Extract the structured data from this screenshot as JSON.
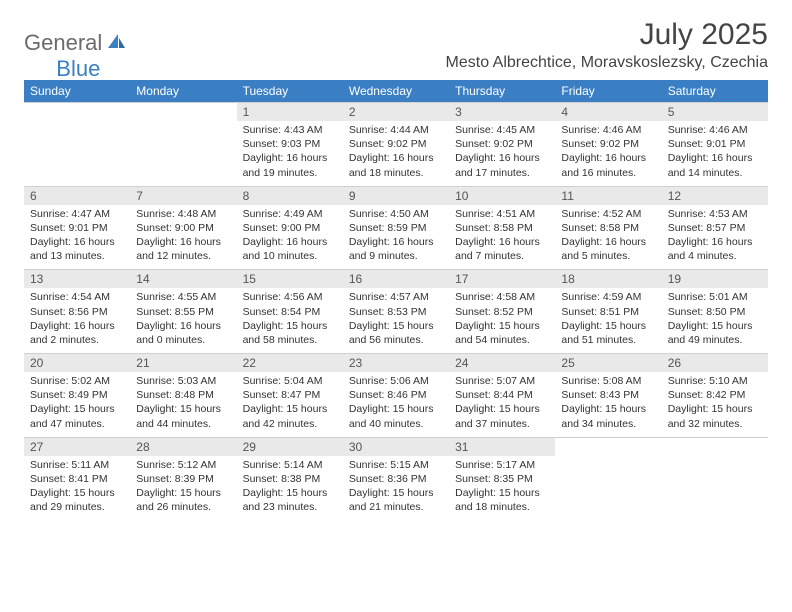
{
  "logo": {
    "word1": "General",
    "word2": "Blue"
  },
  "title": "July 2025",
  "location": "Mesto Albrechtice, Moravskoslezsky, Czechia",
  "colors": {
    "accent": "#3a7fc4",
    "header_bg": "#3a7fc4",
    "header_text": "#ffffff",
    "daynum_bg": "#e9e9e9",
    "border": "#d0d0d0",
    "logo_gray": "#6b6b6b"
  },
  "weekdays": [
    "Sunday",
    "Monday",
    "Tuesday",
    "Wednesday",
    "Thursday",
    "Friday",
    "Saturday"
  ],
  "weeks": [
    {
      "days": [
        null,
        null,
        {
          "num": "1",
          "sunrise": "Sunrise: 4:43 AM",
          "sunset": "Sunset: 9:03 PM",
          "dayl1": "Daylight: 16 hours",
          "dayl2": "and 19 minutes."
        },
        {
          "num": "2",
          "sunrise": "Sunrise: 4:44 AM",
          "sunset": "Sunset: 9:02 PM",
          "dayl1": "Daylight: 16 hours",
          "dayl2": "and 18 minutes."
        },
        {
          "num": "3",
          "sunrise": "Sunrise: 4:45 AM",
          "sunset": "Sunset: 9:02 PM",
          "dayl1": "Daylight: 16 hours",
          "dayl2": "and 17 minutes."
        },
        {
          "num": "4",
          "sunrise": "Sunrise: 4:46 AM",
          "sunset": "Sunset: 9:02 PM",
          "dayl1": "Daylight: 16 hours",
          "dayl2": "and 16 minutes."
        },
        {
          "num": "5",
          "sunrise": "Sunrise: 4:46 AM",
          "sunset": "Sunset: 9:01 PM",
          "dayl1": "Daylight: 16 hours",
          "dayl2": "and 14 minutes."
        }
      ]
    },
    {
      "days": [
        {
          "num": "6",
          "sunrise": "Sunrise: 4:47 AM",
          "sunset": "Sunset: 9:01 PM",
          "dayl1": "Daylight: 16 hours",
          "dayl2": "and 13 minutes."
        },
        {
          "num": "7",
          "sunrise": "Sunrise: 4:48 AM",
          "sunset": "Sunset: 9:00 PM",
          "dayl1": "Daylight: 16 hours",
          "dayl2": "and 12 minutes."
        },
        {
          "num": "8",
          "sunrise": "Sunrise: 4:49 AM",
          "sunset": "Sunset: 9:00 PM",
          "dayl1": "Daylight: 16 hours",
          "dayl2": "and 10 minutes."
        },
        {
          "num": "9",
          "sunrise": "Sunrise: 4:50 AM",
          "sunset": "Sunset: 8:59 PM",
          "dayl1": "Daylight: 16 hours",
          "dayl2": "and 9 minutes."
        },
        {
          "num": "10",
          "sunrise": "Sunrise: 4:51 AM",
          "sunset": "Sunset: 8:58 PM",
          "dayl1": "Daylight: 16 hours",
          "dayl2": "and 7 minutes."
        },
        {
          "num": "11",
          "sunrise": "Sunrise: 4:52 AM",
          "sunset": "Sunset: 8:58 PM",
          "dayl1": "Daylight: 16 hours",
          "dayl2": "and 5 minutes."
        },
        {
          "num": "12",
          "sunrise": "Sunrise: 4:53 AM",
          "sunset": "Sunset: 8:57 PM",
          "dayl1": "Daylight: 16 hours",
          "dayl2": "and 4 minutes."
        }
      ]
    },
    {
      "days": [
        {
          "num": "13",
          "sunrise": "Sunrise: 4:54 AM",
          "sunset": "Sunset: 8:56 PM",
          "dayl1": "Daylight: 16 hours",
          "dayl2": "and 2 minutes."
        },
        {
          "num": "14",
          "sunrise": "Sunrise: 4:55 AM",
          "sunset": "Sunset: 8:55 PM",
          "dayl1": "Daylight: 16 hours",
          "dayl2": "and 0 minutes."
        },
        {
          "num": "15",
          "sunrise": "Sunrise: 4:56 AM",
          "sunset": "Sunset: 8:54 PM",
          "dayl1": "Daylight: 15 hours",
          "dayl2": "and 58 minutes."
        },
        {
          "num": "16",
          "sunrise": "Sunrise: 4:57 AM",
          "sunset": "Sunset: 8:53 PM",
          "dayl1": "Daylight: 15 hours",
          "dayl2": "and 56 minutes."
        },
        {
          "num": "17",
          "sunrise": "Sunrise: 4:58 AM",
          "sunset": "Sunset: 8:52 PM",
          "dayl1": "Daylight: 15 hours",
          "dayl2": "and 54 minutes."
        },
        {
          "num": "18",
          "sunrise": "Sunrise: 4:59 AM",
          "sunset": "Sunset: 8:51 PM",
          "dayl1": "Daylight: 15 hours",
          "dayl2": "and 51 minutes."
        },
        {
          "num": "19",
          "sunrise": "Sunrise: 5:01 AM",
          "sunset": "Sunset: 8:50 PM",
          "dayl1": "Daylight: 15 hours",
          "dayl2": "and 49 minutes."
        }
      ]
    },
    {
      "days": [
        {
          "num": "20",
          "sunrise": "Sunrise: 5:02 AM",
          "sunset": "Sunset: 8:49 PM",
          "dayl1": "Daylight: 15 hours",
          "dayl2": "and 47 minutes."
        },
        {
          "num": "21",
          "sunrise": "Sunrise: 5:03 AM",
          "sunset": "Sunset: 8:48 PM",
          "dayl1": "Daylight: 15 hours",
          "dayl2": "and 44 minutes."
        },
        {
          "num": "22",
          "sunrise": "Sunrise: 5:04 AM",
          "sunset": "Sunset: 8:47 PM",
          "dayl1": "Daylight: 15 hours",
          "dayl2": "and 42 minutes."
        },
        {
          "num": "23",
          "sunrise": "Sunrise: 5:06 AM",
          "sunset": "Sunset: 8:46 PM",
          "dayl1": "Daylight: 15 hours",
          "dayl2": "and 40 minutes."
        },
        {
          "num": "24",
          "sunrise": "Sunrise: 5:07 AM",
          "sunset": "Sunset: 8:44 PM",
          "dayl1": "Daylight: 15 hours",
          "dayl2": "and 37 minutes."
        },
        {
          "num": "25",
          "sunrise": "Sunrise: 5:08 AM",
          "sunset": "Sunset: 8:43 PM",
          "dayl1": "Daylight: 15 hours",
          "dayl2": "and 34 minutes."
        },
        {
          "num": "26",
          "sunrise": "Sunrise: 5:10 AM",
          "sunset": "Sunset: 8:42 PM",
          "dayl1": "Daylight: 15 hours",
          "dayl2": "and 32 minutes."
        }
      ]
    },
    {
      "days": [
        {
          "num": "27",
          "sunrise": "Sunrise: 5:11 AM",
          "sunset": "Sunset: 8:41 PM",
          "dayl1": "Daylight: 15 hours",
          "dayl2": "and 29 minutes."
        },
        {
          "num": "28",
          "sunrise": "Sunrise: 5:12 AM",
          "sunset": "Sunset: 8:39 PM",
          "dayl1": "Daylight: 15 hours",
          "dayl2": "and 26 minutes."
        },
        {
          "num": "29",
          "sunrise": "Sunrise: 5:14 AM",
          "sunset": "Sunset: 8:38 PM",
          "dayl1": "Daylight: 15 hours",
          "dayl2": "and 23 minutes."
        },
        {
          "num": "30",
          "sunrise": "Sunrise: 5:15 AM",
          "sunset": "Sunset: 8:36 PM",
          "dayl1": "Daylight: 15 hours",
          "dayl2": "and 21 minutes."
        },
        {
          "num": "31",
          "sunrise": "Sunrise: 5:17 AM",
          "sunset": "Sunset: 8:35 PM",
          "dayl1": "Daylight: 15 hours",
          "dayl2": "and 18 minutes."
        },
        null,
        null
      ]
    }
  ]
}
